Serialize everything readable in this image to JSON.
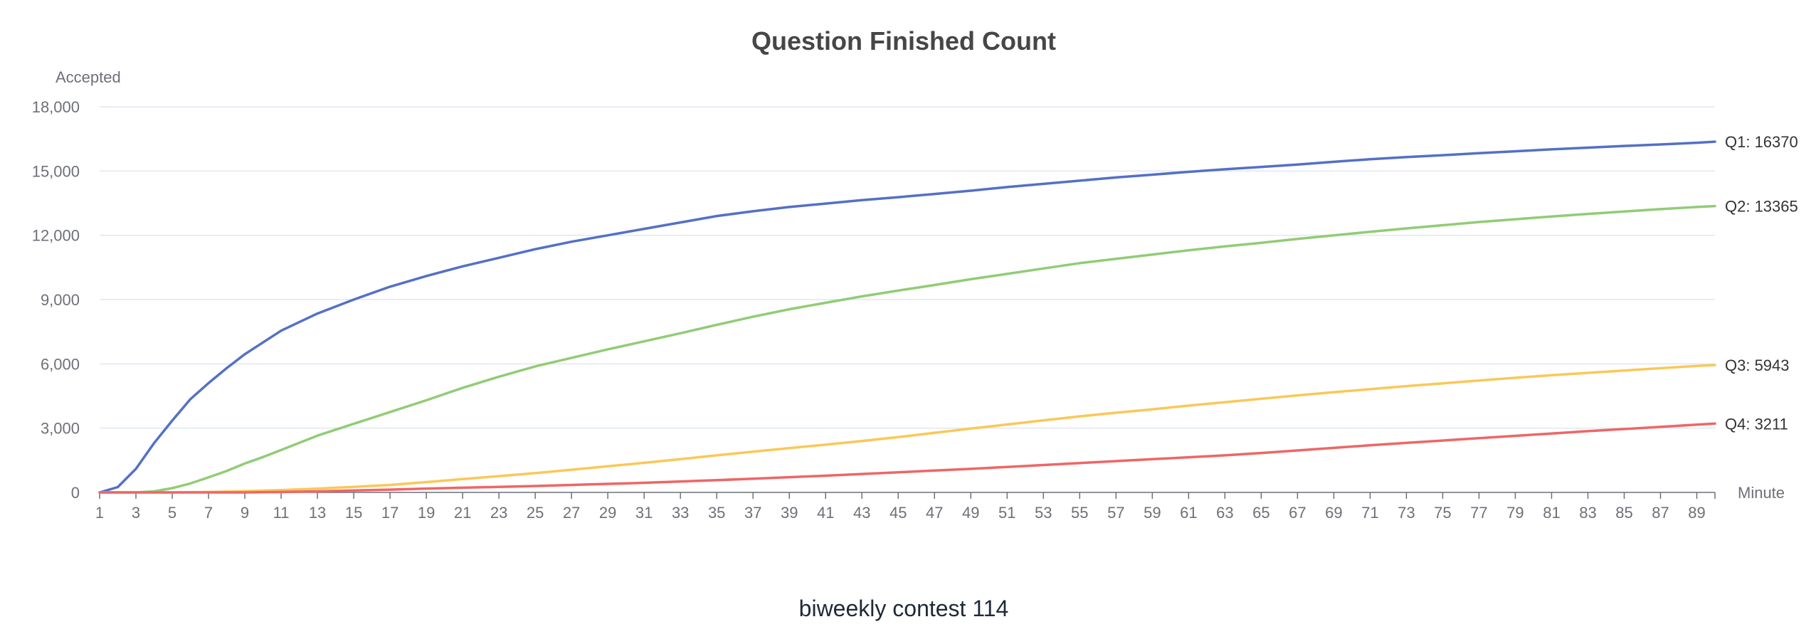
{
  "chart_data": {
    "type": "line",
    "title": "Question Finished Count",
    "xlabel": "Minute",
    "ylabel": "Accepted",
    "caption": "biweekly contest 114",
    "x_range": [
      1,
      90
    ],
    "x_tick_labels": [
      "1",
      "3",
      "5",
      "7",
      "9",
      "11",
      "13",
      "15",
      "17",
      "19",
      "21",
      "23",
      "25",
      "27",
      "29",
      "31",
      "33",
      "35",
      "37",
      "39",
      "41",
      "43",
      "45",
      "47",
      "49",
      "51",
      "53",
      "55",
      "57",
      "59",
      "61",
      "63",
      "65",
      "67",
      "69",
      "71",
      "73",
      "75",
      "77",
      "79",
      "81",
      "83",
      "85",
      "87",
      "89"
    ],
    "ylim": [
      0,
      18000
    ],
    "y_ticks": [
      0,
      3000,
      6000,
      9000,
      12000,
      15000,
      18000
    ],
    "y_tick_labels": [
      "0",
      "3,000",
      "6,000",
      "9,000",
      "12,000",
      "15,000",
      "18,000"
    ],
    "grid": true,
    "series": [
      {
        "name": "Q1",
        "end_label": "Q1: 16370",
        "color": "#5470c6",
        "points": [
          [
            1,
            0
          ],
          [
            2,
            250
          ],
          [
            3,
            1100
          ],
          [
            4,
            2300
          ],
          [
            5,
            3350
          ],
          [
            6,
            4350
          ],
          [
            7,
            5100
          ],
          [
            8,
            5800
          ],
          [
            9,
            6450
          ],
          [
            10,
            7000
          ],
          [
            11,
            7550
          ],
          [
            13,
            8350
          ],
          [
            15,
            9000
          ],
          [
            17,
            9600
          ],
          [
            19,
            10100
          ],
          [
            21,
            10550
          ],
          [
            23,
            10950
          ],
          [
            25,
            11350
          ],
          [
            27,
            11700
          ],
          [
            29,
            12000
          ],
          [
            31,
            12300
          ],
          [
            33,
            12600
          ],
          [
            35,
            12900
          ],
          [
            37,
            13120
          ],
          [
            39,
            13320
          ],
          [
            41,
            13480
          ],
          [
            43,
            13640
          ],
          [
            45,
            13780
          ],
          [
            47,
            13930
          ],
          [
            49,
            14080
          ],
          [
            51,
            14250
          ],
          [
            53,
            14400
          ],
          [
            55,
            14550
          ],
          [
            57,
            14700
          ],
          [
            59,
            14830
          ],
          [
            61,
            14960
          ],
          [
            63,
            15080
          ],
          [
            65,
            15190
          ],
          [
            67,
            15300
          ],
          [
            69,
            15430
          ],
          [
            71,
            15550
          ],
          [
            73,
            15650
          ],
          [
            75,
            15740
          ],
          [
            77,
            15830
          ],
          [
            79,
            15920
          ],
          [
            81,
            16010
          ],
          [
            83,
            16090
          ],
          [
            85,
            16170
          ],
          [
            87,
            16240
          ],
          [
            89,
            16320
          ],
          [
            90,
            16370
          ]
        ]
      },
      {
        "name": "Q2",
        "end_label": "Q2: 13365",
        "color": "#91cc75",
        "points": [
          [
            1,
            0
          ],
          [
            3,
            0
          ],
          [
            4,
            50
          ],
          [
            5,
            200
          ],
          [
            6,
            420
          ],
          [
            7,
            700
          ],
          [
            8,
            1000
          ],
          [
            9,
            1350
          ],
          [
            10,
            1650
          ],
          [
            11,
            1980
          ],
          [
            13,
            2650
          ],
          [
            15,
            3200
          ],
          [
            17,
            3750
          ],
          [
            19,
            4300
          ],
          [
            21,
            4880
          ],
          [
            23,
            5400
          ],
          [
            25,
            5880
          ],
          [
            27,
            6280
          ],
          [
            29,
            6680
          ],
          [
            31,
            7050
          ],
          [
            33,
            7430
          ],
          [
            35,
            7820
          ],
          [
            37,
            8200
          ],
          [
            39,
            8550
          ],
          [
            41,
            8850
          ],
          [
            43,
            9150
          ],
          [
            45,
            9420
          ],
          [
            47,
            9680
          ],
          [
            49,
            9950
          ],
          [
            51,
            10200
          ],
          [
            53,
            10450
          ],
          [
            55,
            10700
          ],
          [
            57,
            10900
          ],
          [
            59,
            11100
          ],
          [
            61,
            11300
          ],
          [
            63,
            11480
          ],
          [
            65,
            11650
          ],
          [
            67,
            11830
          ],
          [
            69,
            12000
          ],
          [
            71,
            12160
          ],
          [
            73,
            12320
          ],
          [
            75,
            12470
          ],
          [
            77,
            12620
          ],
          [
            79,
            12750
          ],
          [
            81,
            12880
          ],
          [
            83,
            13000
          ],
          [
            85,
            13110
          ],
          [
            87,
            13220
          ],
          [
            89,
            13320
          ],
          [
            90,
            13365
          ]
        ]
      },
      {
        "name": "Q3",
        "end_label": "Q3: 5943",
        "color": "#fac858",
        "points": [
          [
            1,
            0
          ],
          [
            5,
            0
          ],
          [
            7,
            20
          ],
          [
            9,
            60
          ],
          [
            11,
            110
          ],
          [
            13,
            180
          ],
          [
            15,
            260
          ],
          [
            17,
            350
          ],
          [
            19,
            480
          ],
          [
            21,
            620
          ],
          [
            23,
            760
          ],
          [
            25,
            900
          ],
          [
            27,
            1060
          ],
          [
            29,
            1220
          ],
          [
            31,
            1380
          ],
          [
            33,
            1550
          ],
          [
            35,
            1730
          ],
          [
            37,
            1900
          ],
          [
            39,
            2070
          ],
          [
            41,
            2230
          ],
          [
            43,
            2400
          ],
          [
            45,
            2580
          ],
          [
            47,
            2780
          ],
          [
            49,
            2980
          ],
          [
            51,
            3170
          ],
          [
            53,
            3360
          ],
          [
            55,
            3550
          ],
          [
            57,
            3720
          ],
          [
            59,
            3880
          ],
          [
            61,
            4050
          ],
          [
            63,
            4210
          ],
          [
            65,
            4370
          ],
          [
            67,
            4530
          ],
          [
            69,
            4680
          ],
          [
            71,
            4820
          ],
          [
            73,
            4960
          ],
          [
            75,
            5090
          ],
          [
            77,
            5220
          ],
          [
            79,
            5350
          ],
          [
            81,
            5470
          ],
          [
            83,
            5580
          ],
          [
            85,
            5690
          ],
          [
            87,
            5800
          ],
          [
            89,
            5900
          ],
          [
            90,
            5943
          ]
        ]
      },
      {
        "name": "Q4",
        "end_label": "Q4: 3211",
        "color": "#ee6666",
        "points": [
          [
            1,
            0
          ],
          [
            9,
            0
          ],
          [
            11,
            20
          ],
          [
            13,
            50
          ],
          [
            15,
            90
          ],
          [
            17,
            130
          ],
          [
            19,
            180
          ],
          [
            21,
            220
          ],
          [
            23,
            260
          ],
          [
            25,
            300
          ],
          [
            27,
            350
          ],
          [
            29,
            400
          ],
          [
            31,
            450
          ],
          [
            33,
            510
          ],
          [
            35,
            570
          ],
          [
            37,
            640
          ],
          [
            39,
            710
          ],
          [
            41,
            780
          ],
          [
            43,
            860
          ],
          [
            45,
            940
          ],
          [
            47,
            1020
          ],
          [
            49,
            1100
          ],
          [
            51,
            1190
          ],
          [
            53,
            1280
          ],
          [
            55,
            1370
          ],
          [
            57,
            1460
          ],
          [
            59,
            1550
          ],
          [
            61,
            1640
          ],
          [
            63,
            1730
          ],
          [
            65,
            1840
          ],
          [
            67,
            1960
          ],
          [
            69,
            2080
          ],
          [
            71,
            2200
          ],
          [
            73,
            2310
          ],
          [
            75,
            2420
          ],
          [
            77,
            2530
          ],
          [
            79,
            2640
          ],
          [
            81,
            2750
          ],
          [
            83,
            2860
          ],
          [
            85,
            2960
          ],
          [
            87,
            3060
          ],
          [
            89,
            3160
          ],
          [
            90,
            3211
          ]
        ]
      }
    ]
  }
}
